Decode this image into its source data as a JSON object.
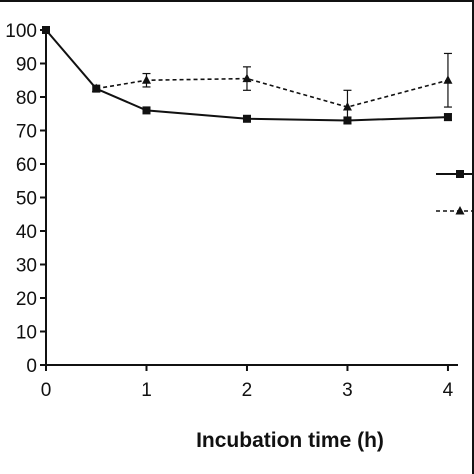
{
  "chart_data": {
    "type": "line",
    "title": "",
    "xlabel": "Incubation time (h)",
    "ylabel": "",
    "xlim": [
      0,
      4.1
    ],
    "ylim": [
      0,
      100
    ],
    "x_ticks": [
      0,
      1,
      2,
      3,
      4
    ],
    "x_tick_labels": [
      "0",
      "1",
      "2",
      "3",
      "4"
    ],
    "y_ticks": [
      0,
      10,
      20,
      30,
      40,
      50,
      60,
      70,
      80,
      90,
      100
    ],
    "y_tick_labels": [
      "0",
      "10",
      "20",
      "30",
      "40",
      "50",
      "60",
      "70",
      "80",
      "90",
      "100"
    ],
    "grid": false,
    "legend": {
      "placement": "right",
      "entries": 2
    },
    "series": [
      {
        "marker": "square",
        "line_style": "solid",
        "color": "#111111",
        "x": [
          0,
          0.5,
          1,
          2,
          3,
          4
        ],
        "y": [
          100,
          82.5,
          76,
          73.5,
          73,
          74
        ],
        "error": [
          0,
          0,
          0,
          0,
          1,
          1
        ]
      },
      {
        "marker": "triangle",
        "line_style": "dashed",
        "color": "#111111",
        "x": [
          0.5,
          1,
          2,
          3,
          4
        ],
        "y": [
          82.5,
          85,
          85.5,
          77,
          85
        ],
        "error": [
          0,
          2,
          3.5,
          5,
          8
        ]
      }
    ]
  }
}
